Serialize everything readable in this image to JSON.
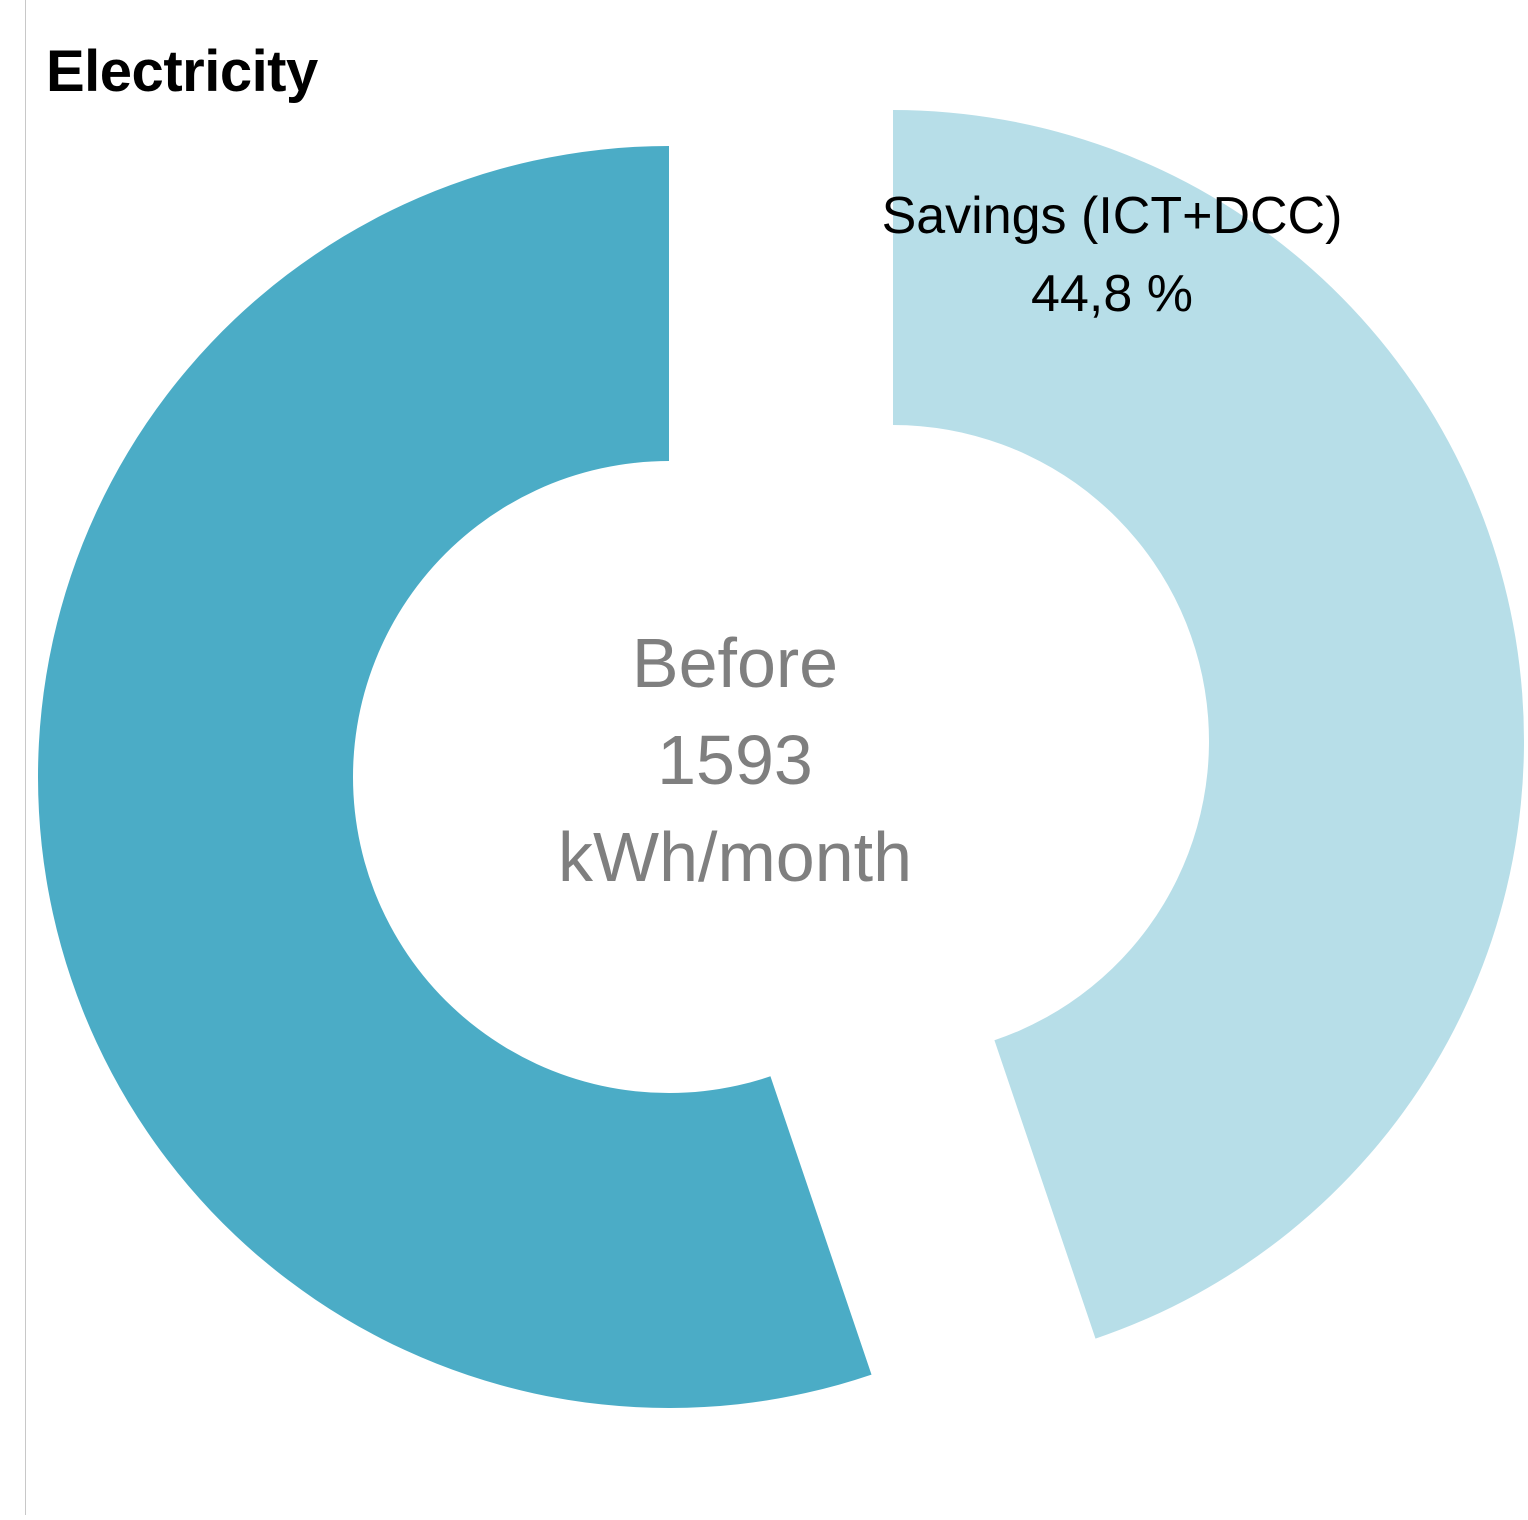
{
  "chart_data": {
    "type": "pie",
    "subtype": "doughnut-exploded",
    "title": "Electricity",
    "slices": [
      {
        "label": "Savings (ICT+DCC)",
        "value": 44.8,
        "value_label": "44,8 %",
        "color": "#B7DEE8"
      },
      {
        "label": "",
        "value": 55.2,
        "color": "#4BACC6"
      }
    ],
    "center_text": {
      "line1": "Before",
      "line2": "1593",
      "line3": "kWh/month"
    }
  }
}
